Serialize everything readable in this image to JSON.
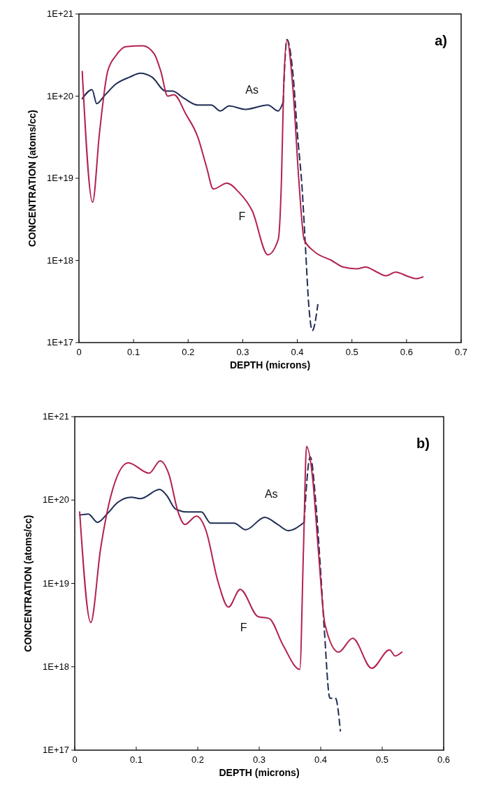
{
  "chart_data": [
    {
      "type": "line",
      "xlabel": "DEPTH (microns)",
      "ylabel": "CONCENTRATION (atoms/cc)",
      "log": "y",
      "xlim": [
        0,
        0.7
      ],
      "xticks": [
        0,
        0.1,
        0.2,
        0.3,
        0.4,
        0.5,
        0.6,
        0.7
      ],
      "ylim": [
        1e+17,
        1e+21
      ],
      "yticks": [
        {
          "value": 1e+17,
          "label": "1E+17"
        },
        {
          "value": 1e+18,
          "label": "1E+18"
        },
        {
          "value": 1e+19,
          "label": "1E+19"
        },
        {
          "value": 1e+20,
          "label": "1E+20"
        },
        {
          "value": 1e+21,
          "label": "1E+21"
        }
      ],
      "annotations": [
        "a)"
      ],
      "series": [
        {
          "name": "As",
          "color": "#1f2d55",
          "line_style": "solid",
          "x": [
            0.006,
            0.024,
            0.0325,
            0.046,
            0.0675,
            0.0925,
            0.1125,
            0.134,
            0.159,
            0.171,
            0.1925,
            0.2175,
            0.2425,
            0.259,
            0.275,
            0.305,
            0.346,
            0.365,
            0.374
          ],
          "values": [
            9.3e+19,
            1.2e+20,
            8.1e+19,
            1e+20,
            1.4e+20,
            1.7e+20,
            1.9e+20,
            1.7e+20,
            1.15e+20,
            1.15e+20,
            9.4e+19,
            7.8e+19,
            7.8e+19,
            6.6e+19,
            7.6e+19,
            6.9e+19,
            7.8e+19,
            6.6e+19,
            8.4e+19
          ]
        },
        {
          "color": "#1f2d55",
          "line_style": "dashed",
          "x": [
            0.374,
            0.381,
            0.3925,
            0.4,
            0.409,
            0.415,
            0.421,
            0.4275,
            0.4375
          ],
          "values": [
            8.4e+19,
            4.9e+20,
            1.7e+20,
            3.6e+19,
            7.1e+18,
            1.4e+18,
            2.8e+17,
            1.4e+17,
            2.9e+17
          ]
        },
        {
          "name": "F",
          "color": "#b3214f",
          "line_style": "solid",
          "x": [
            0.006,
            0.025,
            0.0375,
            0.0525,
            0.0675,
            0.086,
            0.117,
            0.1375,
            0.15,
            0.1625,
            0.174,
            0.196,
            0.2175,
            0.234,
            0.246,
            0.271,
            0.2925,
            0.3175,
            0.346,
            0.365,
            0.371,
            0.375,
            0.381,
            0.3925,
            0.4025,
            0.4125,
            0.43,
            0.4625,
            0.484,
            0.509,
            0.525,
            0.546,
            0.5625,
            0.58,
            0.605,
            0.6175,
            0.63
          ],
          "values": [
            2e+20,
            5.1e+18,
            3.5e+19,
            2e+20,
            3.1e+20,
            4e+20,
            4.1e+20,
            3.3e+20,
            2e+20,
            1e+20,
            1.04e+20,
            6e+19,
            3.2e+19,
            1.35e+19,
            7.4e+18,
            8.7e+18,
            6.8e+18,
            4e+18,
            1.17e+18,
            1.8e+18,
            1e+19,
            1.3e+20,
            4.8e+20,
            1.1e+20,
            1e+19,
            1.8e+18,
            1.3e+18,
            1e+18,
            8.3e+17,
            7.9e+17,
            8.3e+17,
            7.2e+17,
            6.5e+17,
            7.2e+17,
            6.3e+17,
            6e+17,
            6.3e+17
          ]
        }
      ]
    },
    {
      "type": "line",
      "xlabel": "DEPTH (microns)",
      "ylabel": "CONCENTRATION (atoms/cc)",
      "log": "y",
      "xlim": [
        0,
        0.6
      ],
      "xticks": [
        0,
        0.1,
        0.2,
        0.3,
        0.4,
        0.5,
        0.6
      ],
      "ylim": [
        1e+17,
        1e+21
      ],
      "yticks": [
        {
          "value": 1e+17,
          "label": "1E+17"
        },
        {
          "value": 1e+18,
          "label": "1E+18"
        },
        {
          "value": 1e+19,
          "label": "1E+19"
        },
        {
          "value": 1e+20,
          "label": "1E+20"
        },
        {
          "value": 1e+21,
          "label": "1E+21"
        }
      ],
      "annotations": [
        "b)"
      ],
      "series": [
        {
          "name": "As",
          "color": "#1f2d55",
          "line_style": "solid",
          "x": [
            0.008,
            0.022,
            0.037,
            0.054,
            0.07,
            0.092,
            0.107,
            0.138,
            0.149,
            0.164,
            0.183,
            0.206,
            0.221,
            0.259,
            0.278,
            0.309,
            0.33,
            0.347,
            0.373
          ],
          "values": [
            6.6e+19,
            6.8e+19,
            5.4e+19,
            7e+19,
            9.4e+19,
            1.08e+20,
            1.04e+20,
            1.34e+20,
            1.15e+20,
            7.8e+19,
            7.2e+19,
            7.2e+19,
            5.3e+19,
            5.3e+19,
            4.4e+19,
            6.2e+19,
            5.1e+19,
            4.3e+19,
            5.4e+19
          ]
        },
        {
          "color": "#1f2d55",
          "line_style": "dashed",
          "x": [
            0.373,
            0.383,
            0.392,
            0.4,
            0.406,
            0.415,
            0.424,
            0.432
          ],
          "values": [
            5.4e+19,
            3.3e+20,
            9.4e+19,
            1.35e+19,
            2.7e+18,
            4.2e+17,
            4.2e+17,
            1.7e+17
          ]
        },
        {
          "name": "F",
          "color": "#b3214f",
          "line_style": "solid",
          "x": [
            0.008,
            0.026,
            0.042,
            0.058,
            0.087,
            0.121,
            0.139,
            0.153,
            0.168,
            0.179,
            0.198,
            0.213,
            0.233,
            0.25,
            0.269,
            0.298,
            0.316,
            0.339,
            0.366,
            0.372,
            0.377,
            0.387,
            0.396,
            0.407,
            0.429,
            0.452,
            0.483,
            0.512,
            0.521,
            0.532
          ],
          "values": [
            7.2e+19,
            3.4e+18,
            2.6e+19,
            1.07e+20,
            2.8e+20,
            2.1e+20,
            2.95e+20,
            2.05e+20,
            7.2e+19,
            5.1e+19,
            6.4e+19,
            4.4e+19,
            1.05e+19,
            5.2e+18,
            8.5e+18,
            4e+18,
            3.8e+18,
            1.8e+18,
            9.3e+17,
            2.6e+19,
            4.4e+20,
            1.8e+20,
            2.6e+19,
            3.2e+18,
            1.5e+18,
            2.2e+18,
            9.6e+17,
            1.6e+18,
            1.35e+18,
            1.5e+18
          ]
        }
      ]
    }
  ]
}
